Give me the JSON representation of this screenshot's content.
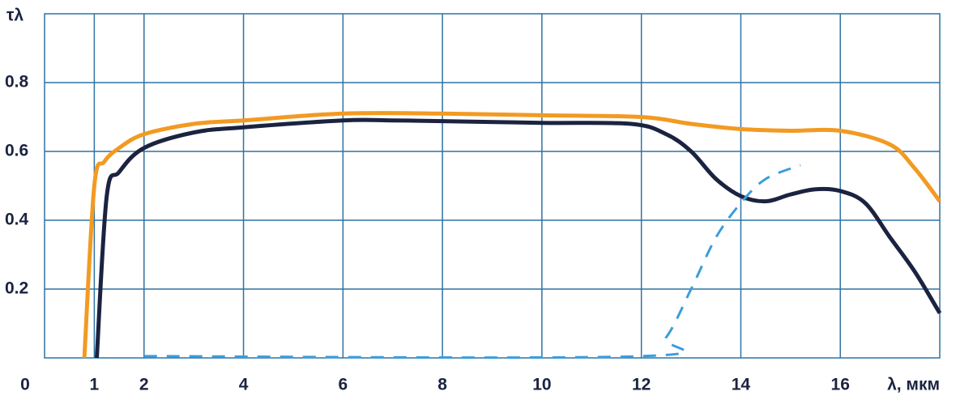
{
  "chart_data": {
    "type": "line",
    "y_label": "τλ",
    "x_label": "λ, мкм",
    "xlim": [
      0,
      18
    ],
    "ylim": [
      0,
      1.0
    ],
    "xticks": [
      0,
      1,
      2,
      4,
      6,
      8,
      10,
      12,
      14,
      16
    ],
    "yticks": [
      0.2,
      0.4,
      0.6,
      0.8
    ],
    "grid": true,
    "grid_color": "#2f72a3",
    "series": [
      {
        "color": "#f29a22",
        "dashed": false,
        "x": [
          0.8,
          1.0,
          1.2,
          1.5,
          2,
          3,
          4,
          6,
          8,
          10,
          12,
          13,
          14,
          15,
          16,
          17,
          17.5,
          18
        ],
        "values": [
          0,
          0.5,
          0.57,
          0.61,
          0.65,
          0.68,
          0.69,
          0.71,
          0.71,
          0.705,
          0.7,
          0.68,
          0.665,
          0.66,
          0.66,
          0.62,
          0.55,
          0.455
        ]
      },
      {
        "color": "#1b2340",
        "dashed": false,
        "x": [
          1.05,
          1.25,
          1.5,
          2,
          3,
          4,
          6,
          7,
          8,
          10,
          11.8,
          12.5,
          13,
          13.5,
          14,
          14.5,
          15,
          15.5,
          16,
          16.5,
          17,
          17.5,
          18
        ],
        "values": [
          0,
          0.47,
          0.54,
          0.61,
          0.655,
          0.67,
          0.69,
          0.69,
          0.688,
          0.683,
          0.68,
          0.65,
          0.6,
          0.52,
          0.47,
          0.455,
          0.475,
          0.49,
          0.485,
          0.45,
          0.35,
          0.25,
          0.13
        ]
      },
      {
        "color": "#3a9ddc",
        "dashed": true,
        "x": [
          2,
          12,
          12.5,
          13,
          13.5,
          14,
          14.5,
          15.2
        ],
        "values": [
          0.005,
          0.005,
          0.06,
          0.2,
          0.35,
          0.45,
          0.52,
          0.56
        ]
      }
    ]
  }
}
